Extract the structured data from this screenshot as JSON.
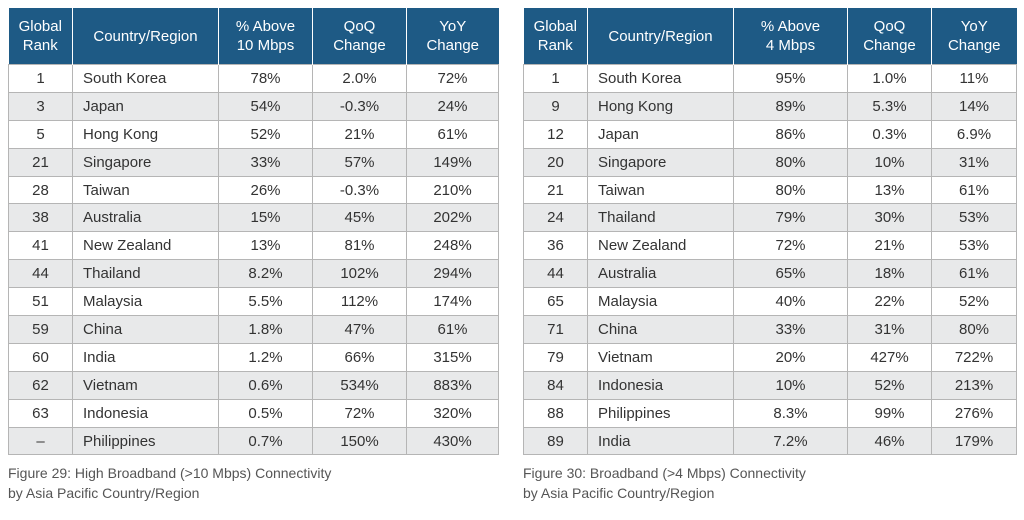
{
  "left": {
    "headers": [
      "Global\nRank",
      "Country/Region",
      "% Above\n10 Mbps",
      "QoQ\nChange",
      "YoY\nChange"
    ],
    "rows": [
      [
        "1",
        "South Korea",
        "78%",
        "2.0%",
        "72%"
      ],
      [
        "3",
        "Japan",
        "54%",
        "-0.3%",
        "24%"
      ],
      [
        "5",
        "Hong Kong",
        "52%",
        "21%",
        "61%"
      ],
      [
        "21",
        "Singapore",
        "33%",
        "57%",
        "149%"
      ],
      [
        "28",
        "Taiwan",
        "26%",
        "-0.3%",
        "210%"
      ],
      [
        "38",
        "Australia",
        "15%",
        "45%",
        "202%"
      ],
      [
        "41",
        "New Zealand",
        "13%",
        "81%",
        "248%"
      ],
      [
        "44",
        "Thailand",
        "8.2%",
        "102%",
        "294%"
      ],
      [
        "51",
        "Malaysia",
        "5.5%",
        "112%",
        "174%"
      ],
      [
        "59",
        "China",
        "1.8%",
        "47%",
        "61%"
      ],
      [
        "60",
        "India",
        "1.2%",
        "66%",
        "315%"
      ],
      [
        "62",
        "Vietnam",
        "0.6%",
        "534%",
        "883%"
      ],
      [
        "63",
        "Indonesia",
        "0.5%",
        "72%",
        "320%"
      ],
      [
        "–",
        "Philippines",
        "0.7%",
        "150%",
        "430%"
      ]
    ],
    "caption_line1": "Figure 29: High Broadband (>10 Mbps) Connectivity",
    "caption_line2": "by Asia Pacific Country/Region"
  },
  "right": {
    "headers": [
      "Global\nRank",
      "Country/Region",
      "% Above\n4 Mbps",
      "QoQ\nChange",
      "YoY\nChange"
    ],
    "rows": [
      [
        "1",
        "South Korea",
        "95%",
        "1.0%",
        "11%"
      ],
      [
        "9",
        "Hong Kong",
        "89%",
        "5.3%",
        "14%"
      ],
      [
        "12",
        "Japan",
        "86%",
        "0.3%",
        "6.9%"
      ],
      [
        "20",
        "Singapore",
        "80%",
        "10%",
        "31%"
      ],
      [
        "21",
        "Taiwan",
        "80%",
        "13%",
        "61%"
      ],
      [
        "24",
        "Thailand",
        "79%",
        "30%",
        "53%"
      ],
      [
        "36",
        "New Zealand",
        "72%",
        "21%",
        "53%"
      ],
      [
        "44",
        "Australia",
        "65%",
        "18%",
        "61%"
      ],
      [
        "65",
        "Malaysia",
        "40%",
        "22%",
        "52%"
      ],
      [
        "71",
        "China",
        "33%",
        "31%",
        "80%"
      ],
      [
        "79",
        "Vietnam",
        "20%",
        "427%",
        "722%"
      ],
      [
        "84",
        "Indonesia",
        "10%",
        "52%",
        "213%"
      ],
      [
        "88",
        "Philippines",
        "8.3%",
        "99%",
        "276%"
      ],
      [
        "89",
        "India",
        "7.2%",
        "46%",
        "179%"
      ]
    ],
    "caption_line1": "Figure 30: Broadband (>4 Mbps) Connectivity",
    "caption_line2": "by Asia Pacific Country/Region"
  },
  "colors": {
    "header_bg": "#1e5a85",
    "header_text": "#ffffff",
    "row_alt": "#e8e9ea",
    "border": "#b5b5b5"
  }
}
